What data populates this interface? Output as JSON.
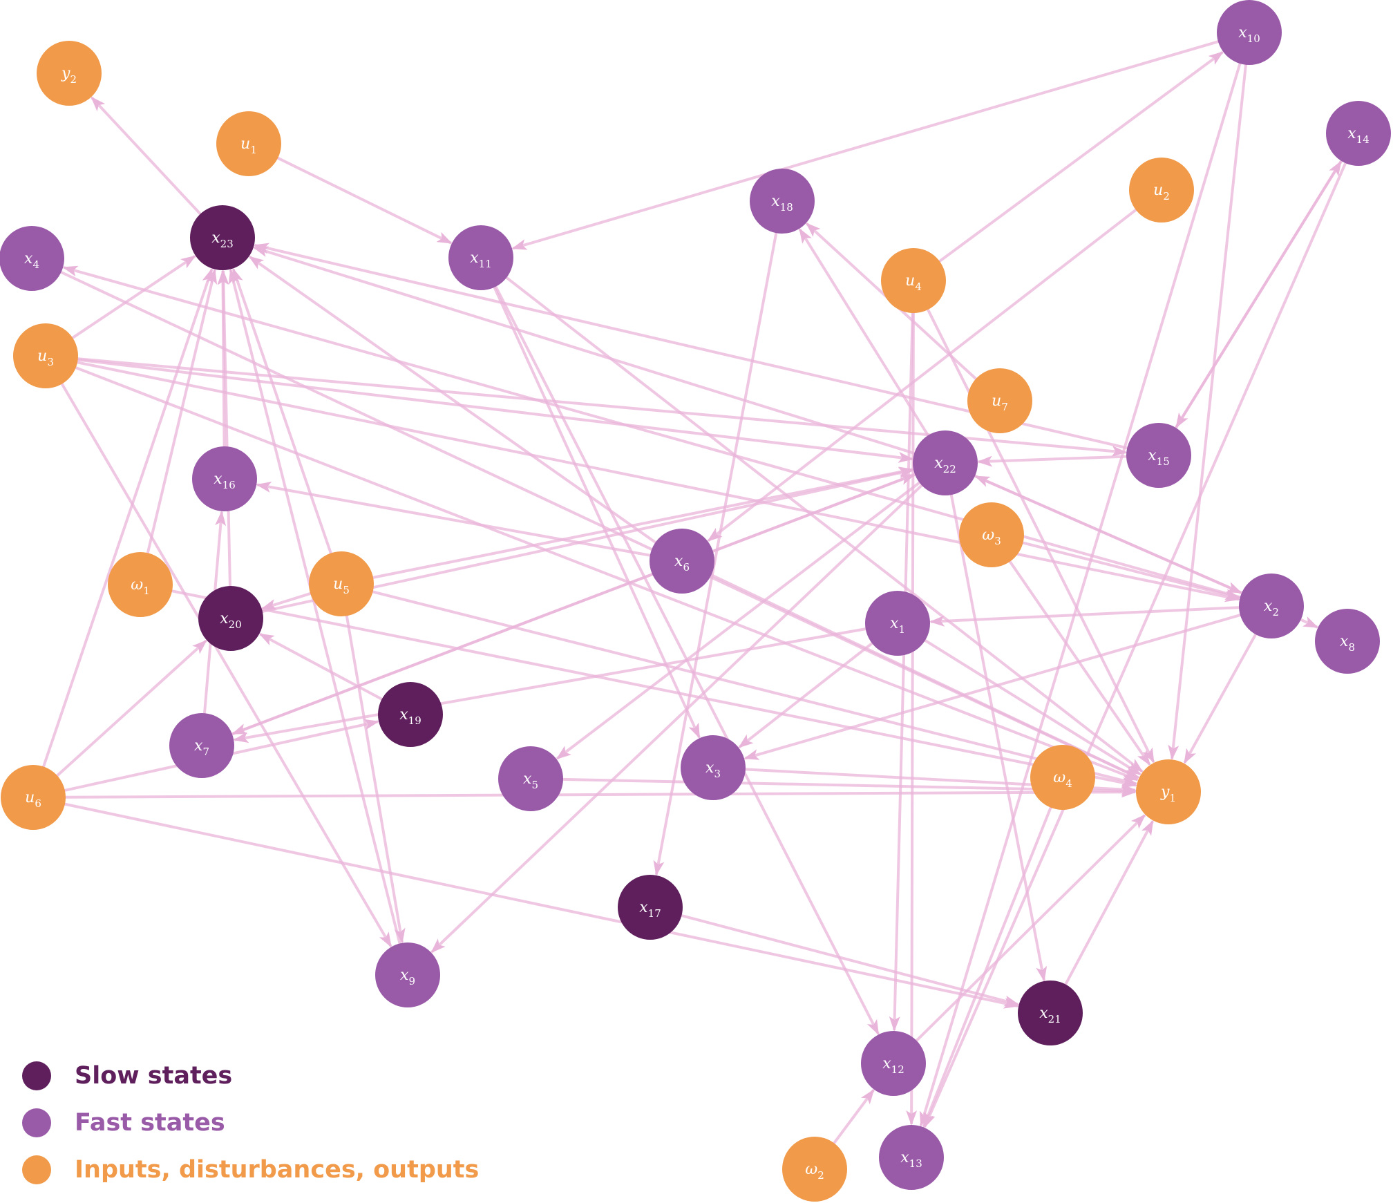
{
  "colors": {
    "slow": "#5e1f5c",
    "fast": "#995aa8",
    "io": "#f09a4a",
    "edge": "#e9b4da"
  },
  "legend": [
    {
      "label": "Slow states",
      "kind": "slow"
    },
    {
      "label": "Fast states",
      "kind": "fast"
    },
    {
      "label": "Inputs, disturbances, outputs",
      "kind": "io"
    }
  ],
  "nodes": [
    {
      "id": "x1",
      "base": "x",
      "sub": "1",
      "kind": "fast"
    },
    {
      "id": "x2",
      "base": "x",
      "sub": "2",
      "kind": "fast"
    },
    {
      "id": "x3",
      "base": "x",
      "sub": "3",
      "kind": "fast"
    },
    {
      "id": "x4",
      "base": "x",
      "sub": "4",
      "kind": "fast"
    },
    {
      "id": "x5",
      "base": "x",
      "sub": "5",
      "kind": "fast"
    },
    {
      "id": "x6",
      "base": "x",
      "sub": "6",
      "kind": "fast"
    },
    {
      "id": "x7",
      "base": "x",
      "sub": "7",
      "kind": "fast"
    },
    {
      "id": "x8",
      "base": "x",
      "sub": "8",
      "kind": "fast"
    },
    {
      "id": "x9",
      "base": "x",
      "sub": "9",
      "kind": "fast"
    },
    {
      "id": "x10",
      "base": "x",
      "sub": "10",
      "kind": "fast"
    },
    {
      "id": "x11",
      "base": "x",
      "sub": "11",
      "kind": "fast"
    },
    {
      "id": "x12",
      "base": "x",
      "sub": "12",
      "kind": "fast"
    },
    {
      "id": "x13",
      "base": "x",
      "sub": "13",
      "kind": "fast"
    },
    {
      "id": "x14",
      "base": "x",
      "sub": "14",
      "kind": "fast"
    },
    {
      "id": "x15",
      "base": "x",
      "sub": "15",
      "kind": "fast"
    },
    {
      "id": "x16",
      "base": "x",
      "sub": "16",
      "kind": "fast"
    },
    {
      "id": "x17",
      "base": "x",
      "sub": "17",
      "kind": "slow"
    },
    {
      "id": "x18",
      "base": "x",
      "sub": "18",
      "kind": "fast"
    },
    {
      "id": "x19",
      "base": "x",
      "sub": "19",
      "kind": "slow"
    },
    {
      "id": "x20",
      "base": "x",
      "sub": "20",
      "kind": "slow"
    },
    {
      "id": "x21",
      "base": "x",
      "sub": "21",
      "kind": "slow"
    },
    {
      "id": "x22",
      "base": "x",
      "sub": "22",
      "kind": "fast"
    },
    {
      "id": "x23",
      "base": "x",
      "sub": "23",
      "kind": "slow"
    },
    {
      "id": "u1",
      "base": "u",
      "sub": "1",
      "kind": "io"
    },
    {
      "id": "u2",
      "base": "u",
      "sub": "2",
      "kind": "io"
    },
    {
      "id": "u3",
      "base": "u",
      "sub": "3",
      "kind": "io"
    },
    {
      "id": "u4",
      "base": "u",
      "sub": "4",
      "kind": "io"
    },
    {
      "id": "u5",
      "base": "u",
      "sub": "5",
      "kind": "io"
    },
    {
      "id": "u6",
      "base": "u",
      "sub": "6",
      "kind": "io"
    },
    {
      "id": "u7",
      "base": "u",
      "sub": "7",
      "kind": "io"
    },
    {
      "id": "w1",
      "base": "ω",
      "sub": "1",
      "kind": "io"
    },
    {
      "id": "w2",
      "base": "ω",
      "sub": "2",
      "kind": "io"
    },
    {
      "id": "w3",
      "base": "ω",
      "sub": "3",
      "kind": "io"
    },
    {
      "id": "w4",
      "base": "ω",
      "sub": "4",
      "kind": "io"
    },
    {
      "id": "y1",
      "base": "y",
      "sub": "1",
      "kind": "io"
    },
    {
      "id": "y2",
      "base": "y",
      "sub": "2",
      "kind": "io"
    }
  ],
  "edges": [
    [
      "x23",
      "y2"
    ],
    [
      "u1",
      "x11"
    ],
    [
      "u3",
      "x23"
    ],
    [
      "w1",
      "x23"
    ],
    [
      "u6",
      "x23"
    ],
    [
      "x16",
      "x23"
    ],
    [
      "x20",
      "x23"
    ],
    [
      "x7",
      "x16"
    ],
    [
      "u5",
      "x23"
    ],
    [
      "x9",
      "x23"
    ],
    [
      "x22",
      "x23"
    ],
    [
      "x15",
      "x23"
    ],
    [
      "x2",
      "x4"
    ],
    [
      "x10",
      "x11"
    ],
    [
      "x11",
      "x3"
    ],
    [
      "x11",
      "y1"
    ],
    [
      "x11",
      "x12"
    ],
    [
      "u4",
      "x10"
    ],
    [
      "u4",
      "x13"
    ],
    [
      "u4",
      "y1"
    ],
    [
      "u2",
      "x6"
    ],
    [
      "x14",
      "x15"
    ],
    [
      "x15",
      "x14"
    ],
    [
      "x14",
      "x13"
    ],
    [
      "x10",
      "x13"
    ],
    [
      "x10",
      "y1"
    ],
    [
      "u7",
      "x18"
    ],
    [
      "x18",
      "x17"
    ],
    [
      "x6",
      "x16"
    ],
    [
      "x22",
      "x18"
    ],
    [
      "x22",
      "x2"
    ],
    [
      "x22",
      "x21"
    ],
    [
      "x22",
      "x9"
    ],
    [
      "x22",
      "x5"
    ],
    [
      "x22",
      "x7"
    ],
    [
      "x15",
      "x22"
    ],
    [
      "x2",
      "x22"
    ],
    [
      "x2",
      "x8"
    ],
    [
      "x2",
      "x1"
    ],
    [
      "x2",
      "x3"
    ],
    [
      "x2",
      "y1"
    ],
    [
      "u3",
      "x22"
    ],
    [
      "u3",
      "x15"
    ],
    [
      "u3",
      "y1"
    ],
    [
      "u3",
      "x9"
    ],
    [
      "u5",
      "x22"
    ],
    [
      "u5",
      "x9"
    ],
    [
      "u5",
      "x20"
    ],
    [
      "u5",
      "y1"
    ],
    [
      "u6",
      "x19"
    ],
    [
      "u6",
      "x20"
    ],
    [
      "u6",
      "y1"
    ],
    [
      "u6",
      "x21"
    ],
    [
      "x7",
      "x22"
    ],
    [
      "x20",
      "x22"
    ],
    [
      "x19",
      "x20"
    ],
    [
      "x6",
      "x23"
    ],
    [
      "x6",
      "y1"
    ],
    [
      "w3",
      "y1"
    ],
    [
      "w3",
      "x2"
    ],
    [
      "x1",
      "x3"
    ],
    [
      "x1",
      "x7"
    ],
    [
      "x1",
      "y1"
    ],
    [
      "x3",
      "y1"
    ],
    [
      "x5",
      "y1"
    ],
    [
      "x12",
      "y1"
    ],
    [
      "x21",
      "y1"
    ],
    [
      "w4",
      "x13"
    ],
    [
      "w2",
      "x12"
    ],
    [
      "x17",
      "x21"
    ],
    [
      "x4",
      "y1"
    ],
    [
      "w1",
      "y1"
    ],
    [
      "u4",
      "x12"
    ],
    [
      "u3",
      "x2"
    ]
  ]
}
